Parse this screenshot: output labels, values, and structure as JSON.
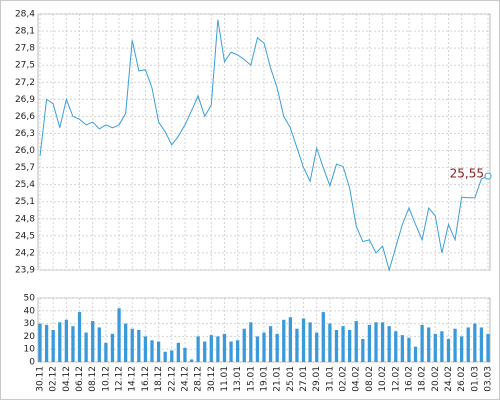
{
  "chart_data": [
    {
      "type": "line",
      "color": "#3a9fd8",
      "label_color": "#8b1a1a",
      "grid": true,
      "values": [
        25.9,
        26.9,
        26.82,
        26.4,
        26.9,
        26.6,
        26.55,
        26.45,
        26.5,
        26.38,
        26.45,
        26.4,
        26.45,
        26.65,
        27.94,
        27.4,
        27.42,
        27.1,
        26.5,
        26.33,
        26.1,
        26.25,
        26.45,
        26.7,
        26.96,
        26.6,
        26.8,
        28.3,
        27.56,
        27.73,
        27.68,
        27.6,
        27.5,
        27.98,
        27.89,
        27.45,
        27.1,
        26.6,
        26.4,
        26.05,
        25.7,
        25.46,
        26.04,
        25.7,
        25.38,
        25.76,
        25.72,
        25.34,
        24.67,
        24.4,
        24.43,
        24.2,
        24.32,
        23.9,
        24.3,
        24.7,
        24.99,
        24.7,
        24.43,
        24.99,
        24.85,
        24.2,
        24.7,
        24.43,
        25.18,
        25.17,
        25.17,
        25.5,
        25.55
      ],
      "value_labels": [
        null,
        null,
        null,
        null,
        null,
        null,
        null,
        null,
        null,
        null,
        null,
        null,
        null,
        null,
        null,
        null,
        null,
        null,
        null,
        null,
        null,
        null,
        null,
        null,
        null,
        null,
        null,
        null,
        null,
        null,
        null,
        null,
        null,
        null,
        null,
        null,
        null,
        null,
        null,
        null,
        null,
        null,
        null,
        null,
        null,
        null,
        null,
        null,
        null,
        null,
        null,
        null,
        null,
        null,
        null,
        null,
        null,
        null,
        null,
        null,
        null,
        null,
        null,
        null,
        null,
        null,
        null,
        null,
        "25,55"
      ],
      "ylim": [
        23.9,
        28.4
      ],
      "yticks": [
        {
          "value": 23.9,
          "label": "23,9"
        },
        {
          "value": 24.2,
          "label": "24,2"
        },
        {
          "value": 24.5,
          "label": "24,5"
        },
        {
          "value": 24.8,
          "label": "24,8"
        },
        {
          "value": 25.1,
          "label": "25,1"
        },
        {
          "value": 25.4,
          "label": "25,4"
        },
        {
          "value": 25.7,
          "label": "25,7"
        },
        {
          "value": 26.0,
          "label": "26,0"
        },
        {
          "value": 26.3,
          "label": "26,3"
        },
        {
          "value": 26.6,
          "label": "26,6"
        },
        {
          "value": 26.9,
          "label": "26,9"
        },
        {
          "value": 27.2,
          "label": "27,2"
        },
        {
          "value": 27.5,
          "label": "27,5"
        },
        {
          "value": 27.8,
          "label": "27,8"
        },
        {
          "value": 28.1,
          "label": "28,1"
        },
        {
          "value": 28.4,
          "label": "28,4"
        }
      ]
    },
    {
      "type": "bar",
      "color": "#3a9ad9",
      "grid": true,
      "categories": [
        "30.11",
        null,
        "02.12",
        null,
        "04.12",
        null,
        "06.12",
        null,
        "08.12",
        null,
        "10.12",
        null,
        "12.12",
        null,
        "14.12",
        null,
        "16.12",
        null,
        "18.12",
        null,
        "22.12",
        null,
        "24.12",
        null,
        "28.12",
        null,
        "30.12",
        null,
        "11.01",
        null,
        "13.01",
        null,
        "15.01",
        null,
        "19.01",
        null,
        "21.01",
        null,
        "25.01",
        null,
        "27.01",
        null,
        "29.01",
        null,
        "31.01",
        null,
        "02.02",
        null,
        "04.02",
        null,
        "08.02",
        null,
        "10.02",
        null,
        "12.02",
        null,
        "16.02",
        null,
        "18.02",
        null,
        "20.02",
        null,
        "24.02",
        null,
        "26.02",
        null,
        "01.03",
        null,
        "03.03"
      ],
      "values": [
        30,
        29,
        25,
        31,
        33,
        28,
        39,
        23,
        32,
        27,
        15,
        22,
        42,
        30,
        26,
        25,
        20,
        17,
        16,
        8,
        9,
        15,
        11,
        2,
        20,
        16,
        21,
        20,
        22,
        16,
        17,
        26,
        31,
        20,
        23,
        28,
        22,
        33,
        35,
        26,
        34,
        31,
        23,
        39,
        30,
        25,
        28,
        25,
        32,
        18,
        29,
        31,
        31,
        28,
        24,
        21,
        19,
        12,
        29,
        27,
        22,
        24,
        18,
        26,
        20,
        27,
        30,
        27,
        22
      ],
      "ylim": [
        0,
        50
      ],
      "yticks": [
        0,
        10,
        20,
        30,
        40,
        50
      ]
    }
  ]
}
